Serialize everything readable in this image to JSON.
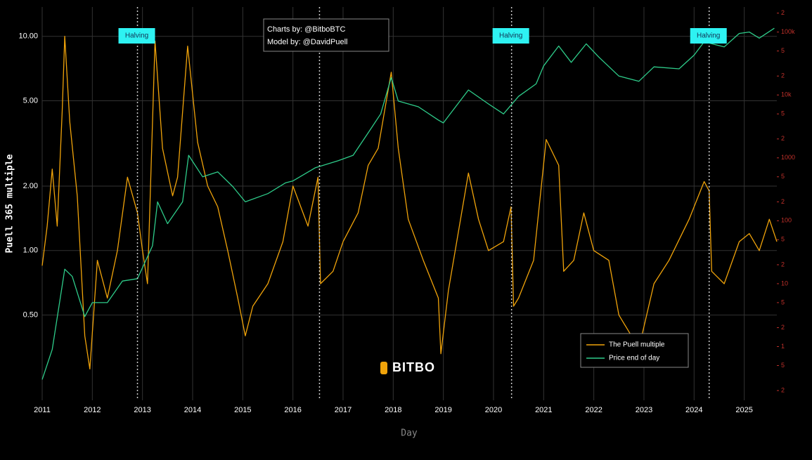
{
  "chart_data": {
    "type": "line",
    "y_label": "Puell 365 multiple",
    "x_label": "Day",
    "credits": [
      "Charts by: @BitboBTC",
      "Model by: @DavidPuell"
    ],
    "watermark": "BITBO",
    "log_y": true,
    "log_y2": true,
    "grid": true,
    "legend": "lower right",
    "xlim": [
      2011,
      2025.65
    ],
    "xticks": [
      2011,
      2012,
      2013,
      2014,
      2015,
      2016,
      2017,
      2018,
      2019,
      2020,
      2021,
      2022,
      2023,
      2024,
      2025
    ],
    "ylim": [
      0.2,
      13.7
    ],
    "yticks": [
      {
        "value": 0.5,
        "label": "0.50"
      },
      {
        "value": 1,
        "label": "1.00"
      },
      {
        "value": 2,
        "label": "2.00"
      },
      {
        "value": 5,
        "label": "5.00"
      },
      {
        "value": 10,
        "label": "10.00"
      }
    ],
    "y2lim": [
      0.14,
      250000
    ],
    "y2ticks": [
      {
        "value": 0.2,
        "label": "2"
      },
      {
        "value": 0.5,
        "label": "5"
      },
      1,
      {
        "value": 2,
        "label": "2"
      },
      {
        "value": 5,
        "label": "5"
      },
      10,
      {
        "value": 20,
        "label": "2"
      },
      {
        "value": 50,
        "label": "5"
      },
      100,
      {
        "value": 200,
        "label": "2"
      },
      {
        "value": 500,
        "label": "5"
      },
      1000,
      {
        "value": 2000,
        "label": "2"
      },
      {
        "value": 5000,
        "label": "5"
      },
      {
        "value": 10000,
        "label": "10k"
      },
      {
        "value": 20000,
        "label": "2"
      },
      {
        "value": 50000,
        "label": "5"
      },
      {
        "value": 100000,
        "label": "100k"
      },
      {
        "value": 200000,
        "label": "2"
      }
    ],
    "annotations": [
      {
        "text": "Halving",
        "x": 2012.9
      },
      {
        "text": "Halving",
        "x": 2016.53
      },
      {
        "text": "Halving",
        "x": 2020.36
      },
      {
        "text": "Halving",
        "x": 2024.3
      }
    ],
    "series": [
      {
        "name": "The Puell multiple",
        "color": "#f0a30a",
        "x": [
          2011.0,
          2011.1,
          2011.2,
          2011.3,
          2011.4,
          2011.45,
          2011.55,
          2011.7,
          2011.85,
          2011.95,
          2012.1,
          2012.3,
          2012.5,
          2012.7,
          2012.9,
          2013.0,
          2013.1,
          2013.25,
          2013.4,
          2013.6,
          2013.7,
          2013.9,
          2014.1,
          2014.3,
          2014.5,
          2014.7,
          2014.9,
          2015.05,
          2015.2,
          2015.5,
          2015.8,
          2016.0,
          2016.3,
          2016.5,
          2016.55,
          2016.8,
          2017.0,
          2017.3,
          2017.5,
          2017.7,
          2017.96,
          2018.1,
          2018.3,
          2018.6,
          2018.9,
          2018.95,
          2019.1,
          2019.5,
          2019.7,
          2019.9,
          2020.2,
          2020.35,
          2020.4,
          2020.5,
          2020.8,
          2021.05,
          2021.3,
          2021.4,
          2021.6,
          2021.8,
          2022.0,
          2022.3,
          2022.5,
          2022.9,
          2023.2,
          2023.5,
          2023.9,
          2024.2,
          2024.3,
          2024.35,
          2024.6,
          2024.9,
          2025.1,
          2025.3,
          2025.5,
          2025.65
        ],
        "values": [
          0.85,
          1.3,
          2.4,
          1.3,
          4.5,
          10,
          4,
          1.8,
          0.4,
          0.28,
          0.9,
          0.6,
          1.0,
          2.2,
          1.5,
          1.0,
          0.7,
          9.5,
          3,
          1.8,
          2.2,
          9,
          3.2,
          2.0,
          1.6,
          1.0,
          0.6,
          0.4,
          0.55,
          0.7,
          1.1,
          2.0,
          1.3,
          2.2,
          0.7,
          0.8,
          1.1,
          1.5,
          2.5,
          3.0,
          6.8,
          3,
          1.4,
          0.9,
          0.6,
          0.33,
          0.65,
          2.3,
          1.4,
          1.0,
          1.1,
          1.6,
          0.55,
          0.6,
          0.9,
          3.3,
          2.5,
          0.8,
          0.9,
          1.5,
          1.0,
          0.9,
          0.5,
          0.35,
          0.7,
          0.9,
          1.4,
          2.1,
          1.9,
          0.8,
          0.7,
          1.1,
          1.2,
          1.0,
          1.4,
          1.1
        ]
      },
      {
        "name": "Price end of day",
        "color": "#2ecc8a",
        "axis": "y2",
        "x": [
          2011.0,
          2011.2,
          2011.45,
          2011.6,
          2011.85,
          2012.0,
          2012.3,
          2012.6,
          2012.9,
          2013.2,
          2013.3,
          2013.5,
          2013.8,
          2013.92,
          2014.2,
          2014.5,
          2014.8,
          2015.05,
          2015.5,
          2015.85,
          2016.0,
          2016.45,
          2016.9,
          2017.2,
          2017.5,
          2017.75,
          2017.96,
          2018.1,
          2018.5,
          2018.9,
          2019.0,
          2019.5,
          2019.9,
          2020.2,
          2020.5,
          2020.85,
          2021.0,
          2021.3,
          2021.55,
          2021.85,
          2022.1,
          2022.5,
          2022.9,
          2023.2,
          2023.7,
          2024.0,
          2024.2,
          2024.6,
          2024.9,
          2025.1,
          2025.3,
          2025.6
        ],
        "values": [
          0.3,
          0.9,
          17,
          13,
          3,
          5,
          5,
          11,
          12,
          40,
          200,
          90,
          200,
          1100,
          500,
          600,
          350,
          200,
          270,
          400,
          430,
          700,
          900,
          1100,
          2500,
          5000,
          19000,
          8000,
          6500,
          4000,
          3600,
          12000,
          7200,
          5000,
          9500,
          15000,
          29000,
          60000,
          33000,
          65000,
          40000,
          20000,
          16500,
          28000,
          26000,
          43000,
          70000,
          58000,
          95000,
          100000,
          80000,
          115000
        ]
      }
    ]
  }
}
